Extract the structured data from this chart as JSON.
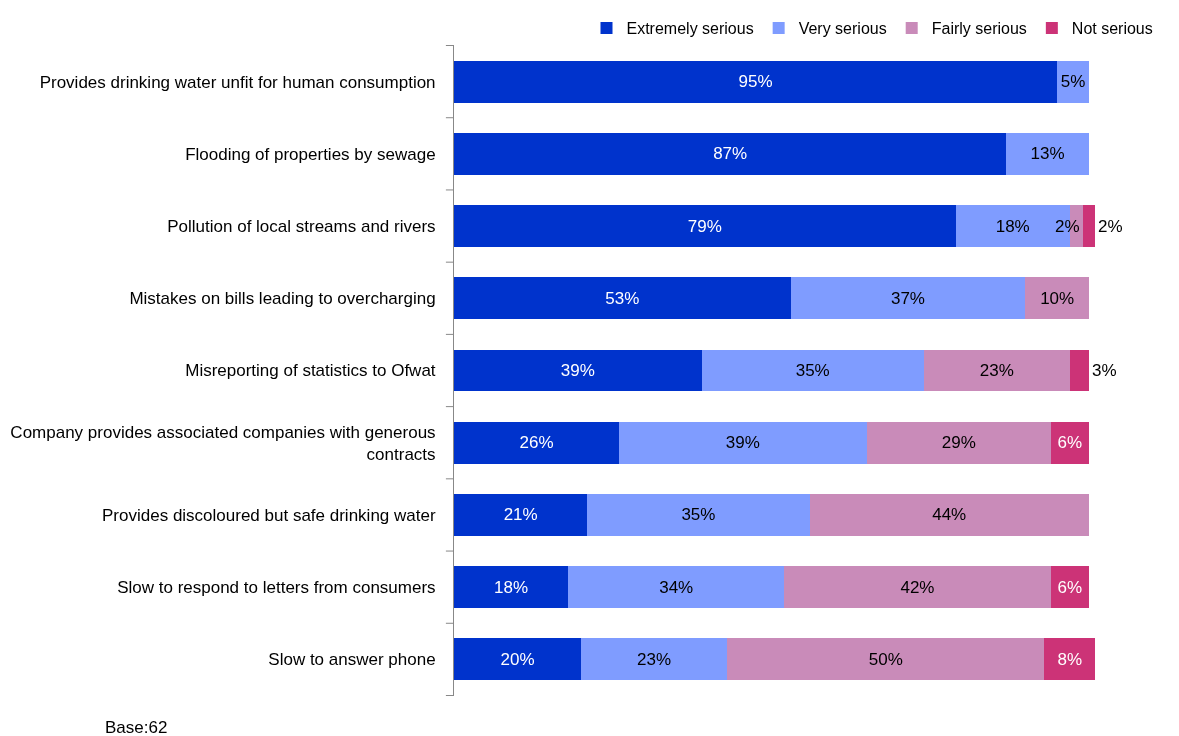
{
  "chart_data": {
    "type": "bar",
    "orientation": "horizontal",
    "stacked": true,
    "legend": "top",
    "categories": [
      "Provides drinking water unfit for human consumption",
      "Flooding of properties by sewage",
      "Pollution of local streams and rivers",
      "Mistakes on bills leading to overcharging",
      "Misreporting of statistics to Ofwat",
      "Company provides associated companies with generous contracts",
      "Provides discoloured but safe drinking water",
      "Slow to respond to letters from consumers",
      "Slow to answer phone"
    ],
    "series": [
      {
        "name": "Extremely serious",
        "color": "#0033cc",
        "values": [
          95,
          87,
          79,
          53,
          39,
          26,
          21,
          18,
          20
        ],
        "value_labels": [
          "95%",
          "87%",
          "79%",
          "53%",
          "39%",
          "26%",
          "21%",
          "18%",
          "20%"
        ]
      },
      {
        "name": "Very serious",
        "color": "#7f9cff",
        "values": [
          5,
          13,
          18,
          37,
          35,
          39,
          35,
          34,
          23
        ],
        "value_labels": [
          "5%",
          "13%",
          "18%",
          "37%",
          "35%",
          "39%",
          "35%",
          "34%",
          "23%"
        ]
      },
      {
        "name": "Fairly serious",
        "color": "#c98bb9",
        "values": [
          null,
          null,
          2,
          10,
          23,
          29,
          44,
          42,
          50
        ],
        "value_labels": [
          null,
          null,
          "2%",
          "10%",
          "23%",
          "29%",
          "44%",
          "42%",
          "50%"
        ]
      },
      {
        "name": "Not serious",
        "color": "#cc3377",
        "values": [
          null,
          null,
          2,
          null,
          3,
          6,
          null,
          6,
          8
        ],
        "value_labels": [
          null,
          null,
          "2%",
          null,
          "3%",
          "6%",
          null,
          "6%",
          "8%"
        ]
      }
    ],
    "annotations": [
      "Base:62"
    ]
  }
}
